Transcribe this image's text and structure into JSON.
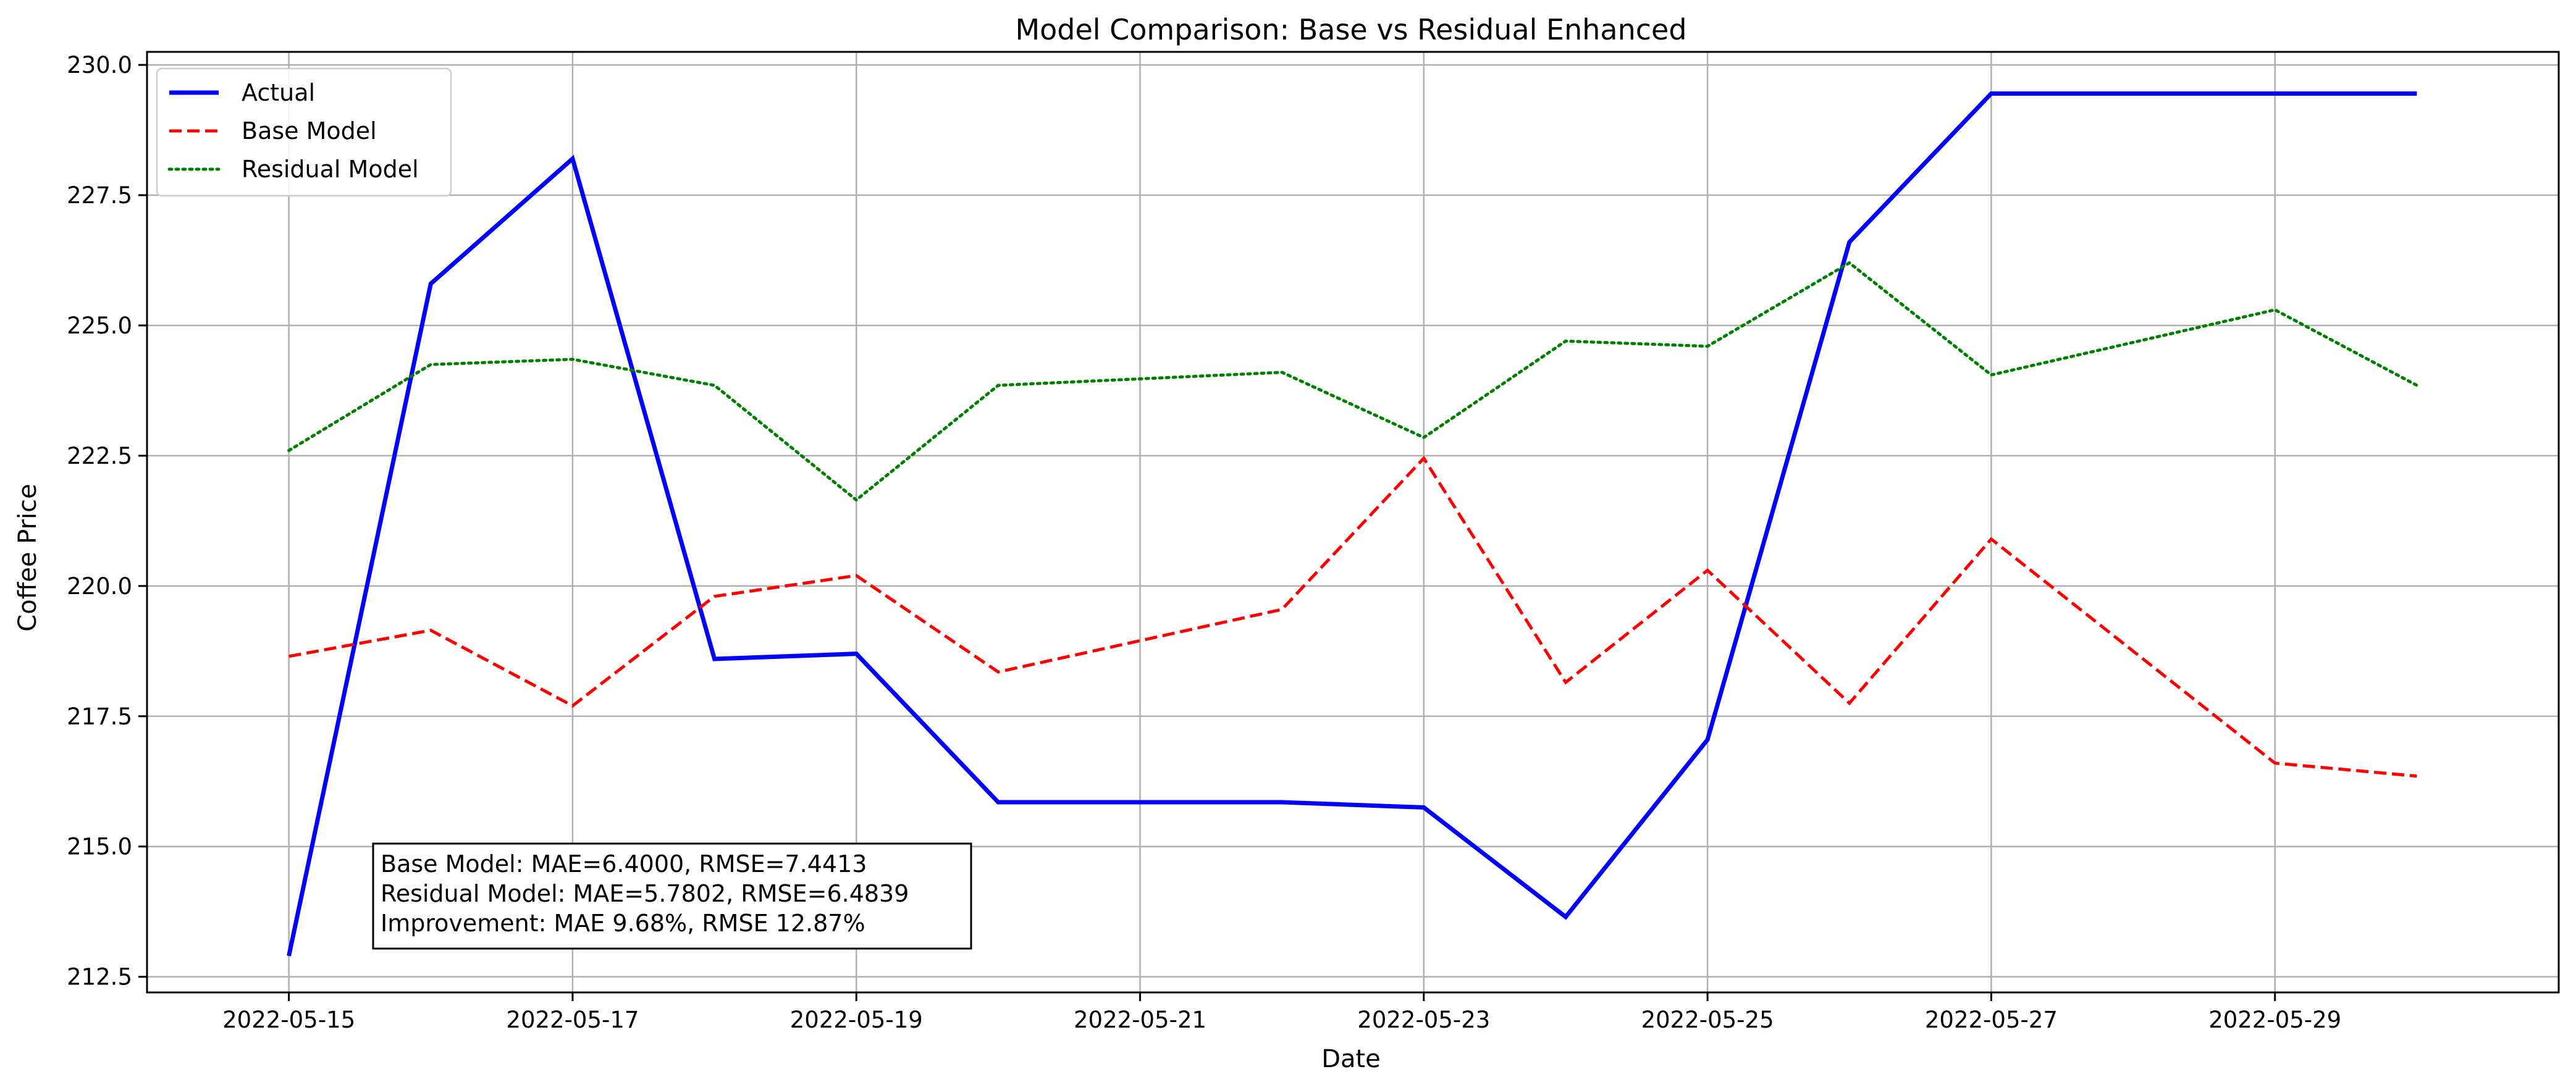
{
  "chart_data": {
    "type": "line",
    "title": "Model Comparison: Base vs Residual Enhanced",
    "xlabel": "Date",
    "ylabel": "Coffee Price",
    "x": [
      "2022-05-15",
      "2022-05-16",
      "2022-05-17",
      "2022-05-18",
      "2022-05-19",
      "2022-05-20",
      "2022-05-21",
      "2022-05-22",
      "2022-05-23",
      "2022-05-24",
      "2022-05-25",
      "2022-05-26",
      "2022-05-27",
      "2022-05-28",
      "2022-05-29",
      "2022-05-30"
    ],
    "xticks": [
      "2022-05-15",
      "2022-05-17",
      "2022-05-19",
      "2022-05-21",
      "2022-05-23",
      "2022-05-25",
      "2022-05-27",
      "2022-05-29"
    ],
    "xlim": [
      "2022-05-14",
      "2022-05-31"
    ],
    "ylim": [
      212.2,
      230.25
    ],
    "yticks": [
      "212.5",
      "215.0",
      "217.5",
      "220.0",
      "222.5",
      "225.0",
      "227.5",
      "230.0"
    ],
    "grid": true,
    "legend_position": "top-left",
    "series": [
      {
        "name": "Actual",
        "color": "#0000ff",
        "style": "solid",
        "values": [
          212.9,
          225.8,
          228.2,
          218.6,
          218.7,
          215.85,
          215.85,
          215.85,
          215.75,
          213.65,
          217.05,
          226.6,
          229.45,
          229.45,
          229.45,
          229.45
        ]
      },
      {
        "name": "Base Model",
        "color": "#ff0000",
        "style": "dashed",
        "values": [
          218.65,
          219.15,
          217.7,
          219.8,
          220.2,
          218.35,
          null,
          219.55,
          222.45,
          218.15,
          220.3,
          217.75,
          220.9,
          null,
          216.6,
          216.35
        ]
      },
      {
        "name": "Residual Model",
        "color": "#008000",
        "style": "dotted",
        "values": [
          222.6,
          224.25,
          224.35,
          223.85,
          221.65,
          223.85,
          null,
          224.1,
          222.85,
          224.7,
          224.6,
          226.2,
          224.05,
          null,
          225.3,
          223.85
        ]
      }
    ],
    "annotation": {
      "position": "bottom-left",
      "lines": [
        "Base Model: MAE=6.4000, RMSE=7.4413",
        "Residual Model: MAE=5.7802, RMSE=6.4839",
        "Improvement: MAE 9.68%, RMSE 12.87%"
      ]
    }
  }
}
